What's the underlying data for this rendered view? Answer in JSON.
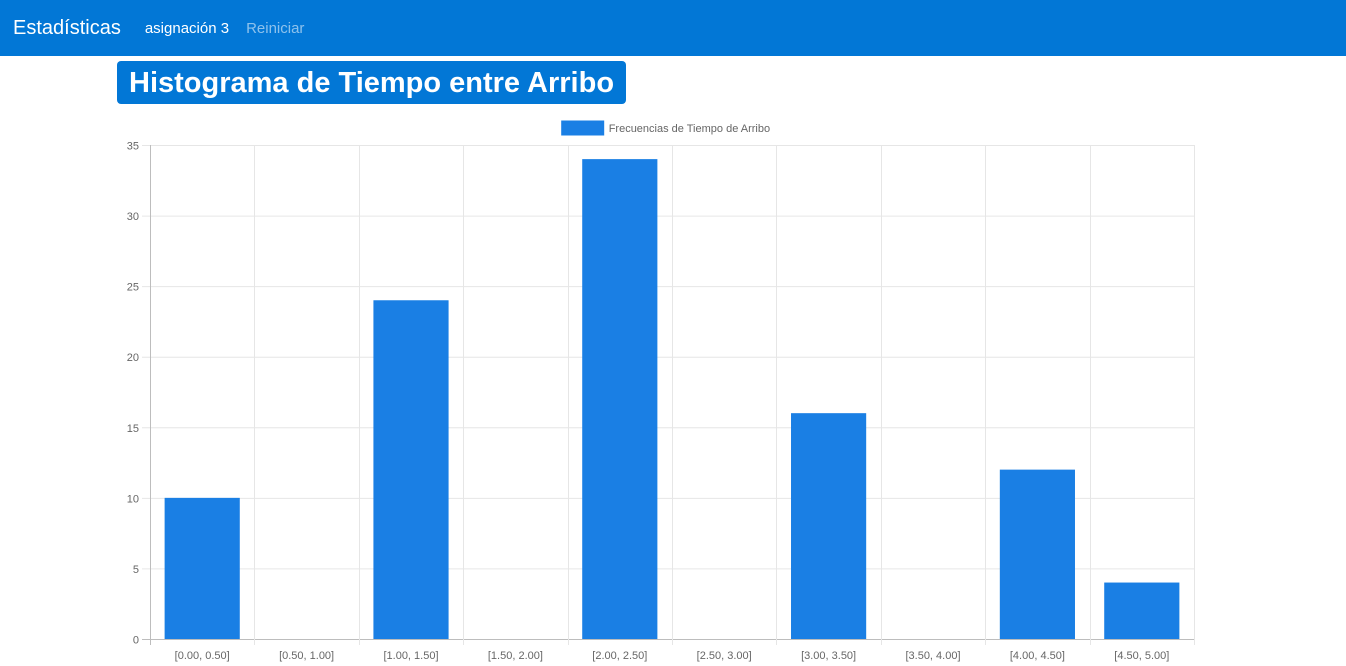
{
  "navbar": {
    "brand": "Estadísticas",
    "links": [
      {
        "label": "asignación 3",
        "active": true
      },
      {
        "label": "Reiniciar",
        "active": false
      }
    ],
    "background_color": "#0277d6"
  },
  "page_title": "Histograma de Tiempo entre Arribo",
  "chart_data": {
    "type": "bar",
    "title": "",
    "xlabel": "",
    "ylabel": "",
    "categories": [
      "[0.00, 0.50]",
      "[0.50, 1.00]",
      "[1.00, 1.50]",
      "[1.50, 2.00]",
      "[2.00, 2.50]",
      "[2.50, 3.00]",
      "[3.00, 3.50]",
      "[3.50, 4.00]",
      "[4.00, 4.50]",
      "[4.50, 5.00]"
    ],
    "series": [
      {
        "name": "Frecuencias de Tiempo de Arribo",
        "values": [
          10,
          0,
          24,
          0,
          34,
          0,
          16,
          0,
          12,
          4
        ],
        "color": "#1a7fe4"
      }
    ],
    "ylim": [
      0,
      35
    ],
    "yticks": [
      0,
      5,
      10,
      15,
      20,
      25,
      30,
      35
    ],
    "grid": true,
    "legend_position": "top-center"
  }
}
